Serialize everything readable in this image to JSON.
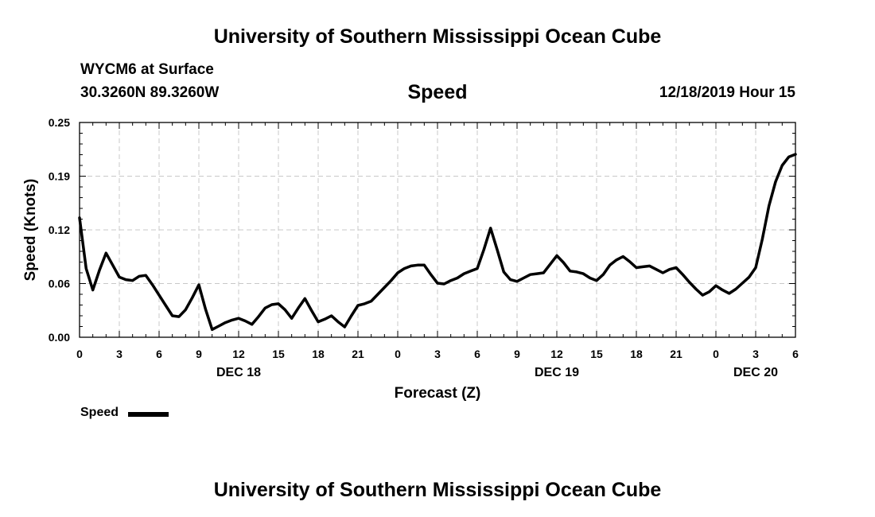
{
  "header": {
    "title": "University of Southern Mississippi Ocean Cube",
    "station": "WYCM6 at Surface",
    "coords": "30.3260N 89.3260W",
    "datetime": "12/18/2019 Hour 15"
  },
  "footer": {
    "title": "University of Southern Mississippi Ocean Cube"
  },
  "legend": {
    "label": "Speed"
  },
  "chart_data": {
    "type": "line",
    "title": "Speed",
    "xlabel": "Forecast (Z)",
    "ylabel": "Speed (Knots)",
    "ylim": [
      0,
      0.25
    ],
    "xlim": [
      0,
      54
    ],
    "yticks": [
      "0.00",
      "0.06",
      "0.12",
      "0.19",
      "0.25"
    ],
    "ytick_values": [
      0,
      0.0625,
      0.125,
      0.1875,
      0.25
    ],
    "xticks": [
      "0",
      "3",
      "6",
      "9",
      "12",
      "15",
      "18",
      "21",
      "0",
      "3",
      "6",
      "9",
      "12",
      "15",
      "18",
      "21",
      "0",
      "3",
      "6"
    ],
    "day_labels": [
      {
        "label": "DEC 18",
        "x": 12
      },
      {
        "label": "DEC 19",
        "x": 36
      },
      {
        "label": "DEC 20",
        "x": 51
      }
    ],
    "grid": true,
    "series": [
      {
        "name": "Speed",
        "color": "#000000",
        "x": [
          0,
          0.5,
          1,
          1.5,
          2,
          2.5,
          3,
          3.5,
          4,
          4.5,
          5,
          5.5,
          6,
          6.5,
          7,
          7.5,
          8,
          8.5,
          9,
          9.5,
          10,
          10.5,
          11,
          11.5,
          12,
          12.5,
          13,
          13.5,
          14,
          14.5,
          15,
          15.5,
          16,
          16.5,
          17,
          17.5,
          18,
          18.5,
          19,
          19.5,
          20,
          20.5,
          21,
          21.5,
          22,
          22.5,
          23,
          23.5,
          24,
          24.5,
          25,
          25.5,
          26,
          26.5,
          27,
          27.5,
          28,
          28.5,
          29,
          29.5,
          30,
          30.5,
          31,
          31.5,
          32,
          32.5,
          33,
          33.5,
          34,
          34.5,
          35,
          35.5,
          36,
          36.5,
          37,
          37.5,
          38,
          38.5,
          39,
          39.5,
          40,
          40.5,
          41,
          41.5,
          42,
          42.5,
          43,
          43.5,
          44,
          44.5,
          45,
          45.5,
          46,
          46.5,
          47,
          47.5,
          48,
          48.5,
          49,
          49.5,
          50,
          50.5,
          51,
          51.5,
          52,
          52.5,
          53,
          53.5,
          54
        ],
        "values": [
          0.139,
          0.08,
          0.055,
          0.078,
          0.098,
          0.084,
          0.07,
          0.067,
          0.066,
          0.071,
          0.072,
          0.061,
          0.049,
          0.037,
          0.025,
          0.024,
          0.032,
          0.046,
          0.061,
          0.033,
          0.009,
          0.013,
          0.017,
          0.02,
          0.022,
          0.019,
          0.015,
          0.024,
          0.034,
          0.038,
          0.039,
          0.032,
          0.022,
          0.034,
          0.045,
          0.031,
          0.018,
          0.021,
          0.025,
          0.018,
          0.012,
          0.025,
          0.037,
          0.039,
          0.042,
          0.05,
          0.058,
          0.066,
          0.075,
          0.08,
          0.083,
          0.084,
          0.084,
          0.073,
          0.063,
          0.062,
          0.066,
          0.069,
          0.074,
          0.077,
          0.08,
          0.102,
          0.127,
          0.102,
          0.076,
          0.067,
          0.065,
          0.069,
          0.073,
          0.074,
          0.075,
          0.085,
          0.095,
          0.087,
          0.077,
          0.076,
          0.074,
          0.069,
          0.066,
          0.073,
          0.084,
          0.09,
          0.094,
          0.088,
          0.081,
          0.082,
          0.083,
          0.079,
          0.075,
          0.079,
          0.081,
          0.073,
          0.064,
          0.056,
          0.049,
          0.053,
          0.06,
          0.055,
          0.051,
          0.056,
          0.063,
          0.07,
          0.081,
          0.114,
          0.153,
          0.181,
          0.2,
          0.21,
          0.213
        ]
      }
    ]
  }
}
